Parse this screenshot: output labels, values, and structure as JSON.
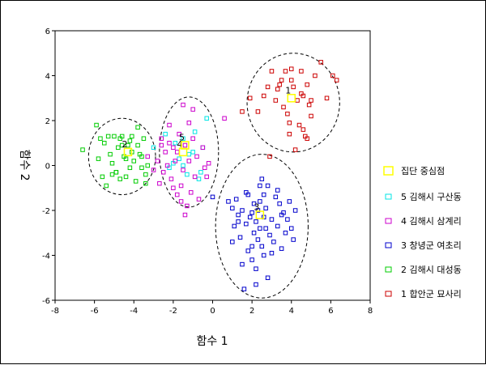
{
  "chart_data": {
    "type": "scatter",
    "xlabel": "함수 1",
    "ylabel": "함수 2",
    "xlim": [
      -8,
      8
    ],
    "ylim": [
      -6,
      6
    ],
    "x_ticks": [
      "-8",
      "-6",
      "-4",
      "-2",
      "0",
      "2",
      "4",
      "6",
      "8"
    ],
    "y_ticks": [
      "-6",
      "-4",
      "-2",
      "0",
      "2",
      "4",
      "6"
    ],
    "grid": false,
    "legend_position": "right",
    "centroid_legend": {
      "label": "집단 중심점",
      "color": "#ffff00"
    },
    "centroids": [
      {
        "label": "1",
        "x": 4.0,
        "y": 3.0
      },
      {
        "label": "2",
        "x": -4.3,
        "y": 0.6
      },
      {
        "label": "3",
        "x": 2.4,
        "y": -2.2
      },
      {
        "label": "4",
        "x": -1.5,
        "y": 0.6
      },
      {
        "label": "5",
        "x": -1.4,
        "y": 0.9
      }
    ],
    "series": [
      {
        "name": "5 김해시 구산동",
        "color": "#00e5e5",
        "x": [
          -3.0,
          -2.4,
          -2.2,
          -1.9,
          -1.7,
          -1.5,
          -1.5,
          -1.3,
          -1.2,
          -1.0,
          -0.7,
          -0.6,
          -0.5,
          -0.3,
          -0.9,
          -2.0
        ],
        "y": [
          0.8,
          1.4,
          -0.1,
          1.0,
          0.3,
          1.2,
          0.0,
          -0.4,
          0.5,
          0.6,
          -0.6,
          -0.3,
          0.8,
          2.1,
          1.5,
          0.1
        ]
      },
      {
        "name": "4 김해시 삼계리",
        "color": "#cc00cc",
        "x": [
          -3.3,
          -3.0,
          -2.8,
          -2.7,
          -2.6,
          -2.5,
          -2.4,
          -2.3,
          -2.2,
          -2.1,
          -2.0,
          -2.0,
          -1.9,
          -1.8,
          -1.7,
          -1.6,
          -1.5,
          -1.5,
          -1.4,
          -1.3,
          -1.2,
          -1.1,
          -1.0,
          -1.0,
          -0.9,
          -0.8,
          -0.7,
          -0.5,
          -0.3,
          -0.2,
          0.6,
          -1.6,
          -1.2,
          -2.2,
          -0.4,
          -1.8,
          -1.4,
          -2.6
        ],
        "y": [
          0.4,
          -0.2,
          0.2,
          -0.8,
          1.2,
          -0.3,
          0.6,
          0.0,
          1.8,
          -0.6,
          -1.0,
          0.8,
          0.2,
          -1.3,
          1.4,
          -1.6,
          -0.2,
          2.7,
          0.9,
          -1.8,
          0.2,
          -1.2,
          1.2,
          2.5,
          -0.5,
          0.4,
          -1.5,
          0.8,
          -0.5,
          0.1,
          2.1,
          -0.9,
          1.9,
          1.0,
          -0.1,
          0.6,
          -2.2,
          0.9
        ]
      },
      {
        "name": "3 창녕군 여초리",
        "color": "#0000cc",
        "x": [
          0.0,
          0.8,
          1.0,
          1.1,
          1.2,
          1.3,
          1.4,
          1.5,
          1.6,
          1.7,
          1.7,
          1.8,
          1.9,
          2.0,
          2.0,
          2.1,
          2.1,
          2.2,
          2.2,
          2.3,
          2.3,
          2.4,
          2.4,
          2.5,
          2.5,
          2.6,
          2.6,
          2.7,
          2.7,
          2.8,
          2.9,
          3.0,
          3.1,
          3.2,
          3.3,
          3.4,
          3.5,
          3.6,
          3.7,
          3.8,
          4.0,
          4.2,
          1.5,
          2.0,
          2.8,
          3.3,
          3.9,
          1.0,
          1.3,
          2.4,
          2.6,
          3.0,
          2.2,
          1.8,
          3.5,
          4.1
        ],
        "y": [
          -1.4,
          -1.6,
          -1.9,
          -2.7,
          -1.5,
          -2.2,
          -3.2,
          -2.0,
          -5.5,
          -2.6,
          -1.2,
          -3.8,
          -2.3,
          -2.1,
          -4.2,
          -1.7,
          -3.0,
          -2.5,
          -4.6,
          -2.0,
          -3.3,
          -1.6,
          -2.8,
          -0.6,
          -3.6,
          -2.3,
          -4.0,
          -1.9,
          -2.8,
          -5.0,
          -3.1,
          -2.4,
          -3.4,
          -1.4,
          -2.7,
          -1.7,
          -3.7,
          -2.1,
          -3.0,
          -2.4,
          -2.8,
          -2.0,
          -4.4,
          -3.6,
          -0.9,
          -1.1,
          -1.6,
          -3.4,
          -2.5,
          -0.9,
          -1.3,
          -3.9,
          -5.3,
          -1.3,
          -2.2,
          -3.3
        ]
      },
      {
        "name": "2 김해시 대성동",
        "color": "#00cc00",
        "x": [
          -6.6,
          -5.9,
          -5.8,
          -5.6,
          -5.5,
          -5.4,
          -5.2,
          -5.1,
          -5.0,
          -4.9,
          -4.8,
          -4.7,
          -4.6,
          -4.5,
          -4.4,
          -4.3,
          -4.2,
          -4.1,
          -4.0,
          -3.9,
          -3.8,
          -3.7,
          -3.6,
          -3.5,
          -3.4,
          -3.3,
          -5.7,
          -4.9,
          -4.6,
          -4.1,
          -3.6,
          -5.3,
          -4.4,
          -3.8,
          -5.1,
          -4.7,
          -4.2,
          -3.4
        ],
        "y": [
          0.7,
          1.8,
          0.3,
          -0.5,
          1.0,
          -0.9,
          0.5,
          0.1,
          1.3,
          -0.3,
          0.8,
          -0.6,
          1.3,
          0.4,
          -0.5,
          0.9,
          -0.1,
          1.3,
          0.2,
          -0.7,
          1.7,
          0.5,
          -0.1,
          1.2,
          -0.8,
          0.0,
          1.2,
          -0.3,
          0.9,
          0.6,
          0.4,
          1.3,
          0.3,
          0.9,
          -0.4,
          1.2,
          1.1,
          -0.4
        ]
      },
      {
        "name": "1 합안군 묘사리",
        "color": "#cc0000",
        "x": [
          1.5,
          1.9,
          2.3,
          2.8,
          2.9,
          3.2,
          3.3,
          3.5,
          3.6,
          3.7,
          3.8,
          3.9,
          4.0,
          4.1,
          4.2,
          4.3,
          4.4,
          4.5,
          4.6,
          4.7,
          4.8,
          4.9,
          5.0,
          5.2,
          5.5,
          5.8,
          6.1,
          6.3,
          3.0,
          3.9,
          4.6,
          5.0,
          3.4,
          4.5,
          4.0,
          4.8,
          2.6
        ],
        "y": [
          2.4,
          3.0,
          2.4,
          3.5,
          0.4,
          2.9,
          3.4,
          3.8,
          2.6,
          4.2,
          2.3,
          1.4,
          3.8,
          3.5,
          0.7,
          2.9,
          1.8,
          4.2,
          3.1,
          1.3,
          3.6,
          2.7,
          2.9,
          4.0,
          4.6,
          3.0,
          4.0,
          3.8,
          4.2,
          1.9,
          1.6,
          2.2,
          3.6,
          3.2,
          4.3,
          1.2,
          3.1
        ]
      }
    ],
    "ellipses": [
      {
        "group": "1",
        "cx": 4.1,
        "cy": 2.8,
        "rx": 2.35,
        "ry": 2.2
      },
      {
        "group": "2",
        "cx": -4.6,
        "cy": 0.4,
        "rx": 1.7,
        "ry": 1.7
      },
      {
        "group": "3",
        "cx": 2.5,
        "cy": -2.7,
        "rx": 2.35,
        "ry": 3.2
      },
      {
        "group": "4",
        "cx": -1.2,
        "cy": 0.6,
        "rx": 1.5,
        "ry": 2.45
      }
    ]
  }
}
